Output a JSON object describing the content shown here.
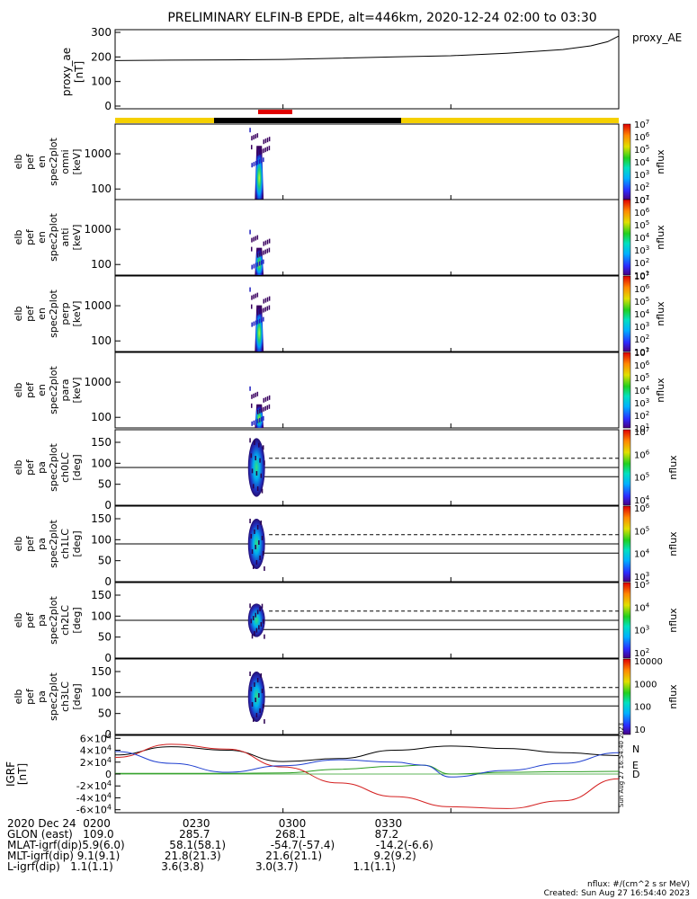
{
  "title": "PRELIMINARY ELFIN-B EPDE, alt=446km, 2020-12-24 02:00 to 03:30",
  "colors": {
    "sci_zone_yellow": "#f5d000",
    "sci_zone_black": "#000000",
    "sci_zone_red": "#e00000",
    "field_N": "#000000",
    "field_E": "#2a9d20",
    "field_D": "#d42020",
    "field_blue": "#2040d0"
  },
  "labels": {
    "proxy_ae_legend": "proxy_AE",
    "igrf_N": "N",
    "igrf_E": "E",
    "igrf_D": "D",
    "stamp": "Sun Aug 27 16:54:40 2023"
  },
  "footer": {
    "row1": "2020 Dec 24  0200                     0230                    0300                    0330",
    "row2": "GLON (east)   109.0                   285.7                   268.1                    87.2",
    "row3": "MLAT-igrf(dip)5.9(6.0)             58.1(58.1)             -54.7(-57.4)            -14.2(-6.6)",
    "row4": "MLT-igrf(dip) 9.1(9.1)             21.8(21.3)             21.6(21.1)               9.2(9.2)",
    "row5": "L-igrf(dip)   1.1(1.1)              3.6(3.8)               3.0(3.7)                1.1(1.1)",
    "units": "nflux: #/(cm^2 s sr MeV)",
    "created": "Created: Sun Aug 27 16:54:40 2023"
  },
  "chart_data": [
    {
      "type": "line",
      "title": "PRELIMINARY ELFIN-B EPDE, alt=446km, 2020-12-24 02:00 to 03:30",
      "ylabel": "proxy_ae [nT]",
      "ylim": [
        0,
        300
      ],
      "yticks": [
        "0",
        "100",
        "200",
        "300"
      ],
      "series": [
        {
          "name": "proxy_AE",
          "x_min": [
            0,
            10,
            20,
            30,
            40,
            50,
            60,
            70,
            80,
            85,
            88,
            90
          ],
          "y": [
            185,
            187,
            188,
            190,
            195,
            200,
            205,
            215,
            230,
            245,
            262,
            285
          ]
        }
      ]
    },
    {
      "type": "heatmap",
      "ylabel": "elb pef en spec2plot omni [keV]",
      "yscale": "log",
      "yticks": [
        "100",
        "1000"
      ],
      "colorbar": {
        "label": "nflux",
        "ticks": [
          "10^1",
          "10^2",
          "10^3",
          "10^4",
          "10^5",
          "10^6",
          "10^7"
        ]
      },
      "time_range_min": [
        24,
        27.5
      ]
    },
    {
      "type": "heatmap",
      "ylabel": "elb pef en spec2plot anti [keV]",
      "yscale": "log",
      "yticks": [
        "100",
        "1000"
      ],
      "colorbar": {
        "label": "nflux",
        "ticks": [
          "10^1",
          "10^2",
          "10^3",
          "10^4",
          "10^5",
          "10^6",
          "10^7"
        ]
      },
      "time_range_min": [
        24,
        27.5
      ]
    },
    {
      "type": "heatmap",
      "ylabel": "elb pef en spec2plot perp [keV]",
      "yscale": "log",
      "yticks": [
        "100",
        "1000"
      ],
      "colorbar": {
        "label": "nflux",
        "ticks": [
          "10^1",
          "10^2",
          "10^3",
          "10^4",
          "10^5",
          "10^6",
          "10^7"
        ]
      },
      "time_range_min": [
        24,
        27.5
      ]
    },
    {
      "type": "heatmap",
      "ylabel": "elb pef en spec2plot para [keV]",
      "yscale": "log",
      "yticks": [
        "100",
        "1000"
      ],
      "colorbar": {
        "label": "nflux",
        "ticks": [
          "10^1",
          "10^2",
          "10^3",
          "10^4",
          "10^5",
          "10^6",
          "10^7"
        ]
      },
      "time_range_min": [
        24,
        27.5
      ]
    },
    {
      "type": "heatmap",
      "ylabel": "elb pef pa spec2plot ch0LC [deg]",
      "ylim": [
        0,
        180
      ],
      "yticks": [
        "0",
        "50",
        "100",
        "150"
      ],
      "reference_lines_deg": [
        90,
        68,
        112
      ],
      "colorbar": {
        "label": "nflux",
        "ticks": [
          "10^4",
          "10^5",
          "10^6",
          "10^7"
        ]
      },
      "time_range_min": [
        24,
        27.5
      ]
    },
    {
      "type": "heatmap",
      "ylabel": "elb pef pa spec2plot ch1LC [deg]",
      "ylim": [
        0,
        180
      ],
      "yticks": [
        "0",
        "50",
        "100",
        "150"
      ],
      "reference_lines_deg": [
        90,
        68,
        112
      ],
      "colorbar": {
        "label": "nflux",
        "ticks": [
          "10^3",
          "10^4",
          "10^5",
          "10^6"
        ]
      },
      "time_range_min": [
        24,
        27.5
      ]
    },
    {
      "type": "heatmap",
      "ylabel": "elb pef pa spec2plot ch2LC [deg]",
      "ylim": [
        0,
        180
      ],
      "yticks": [
        "0",
        "50",
        "100",
        "150"
      ],
      "reference_lines_deg": [
        90,
        68,
        112
      ],
      "colorbar": {
        "label": "nflux",
        "ticks": [
          "10^2",
          "10^3",
          "10^4",
          "10^5"
        ]
      },
      "time_range_min": [
        24,
        27.5
      ]
    },
    {
      "type": "heatmap",
      "ylabel": "elb pef pa spec2plot ch3LC [deg]",
      "ylim": [
        0,
        180
      ],
      "yticks": [
        "0",
        "50",
        "100",
        "150"
      ],
      "reference_lines_deg": [
        90,
        68,
        112
      ],
      "colorbar": {
        "label": "nflux",
        "ticks": [
          "10",
          "100",
          "1000",
          "10000"
        ]
      },
      "time_range_min": [
        24,
        27.5
      ]
    },
    {
      "type": "line",
      "ylabel": "IGRF [nT]",
      "ylim": [
        -65000,
        65000
      ],
      "yticks": [
        "-6x10^4",
        "-4x10^4",
        "-2x10^4",
        "0",
        "2x10^4",
        "4x10^4",
        "6x10^4"
      ],
      "series": [
        {
          "name": "N",
          "x_min": [
            0,
            10,
            20,
            30,
            40,
            50,
            60,
            70,
            80,
            90
          ],
          "y": [
            32000,
            46000,
            40000,
            21000,
            26000,
            40000,
            47000,
            43000,
            36000,
            31000
          ]
        },
        {
          "name": "E",
          "x_min": [
            0,
            10,
            20,
            30,
            40,
            50,
            55,
            60,
            70,
            80,
            90
          ],
          "y": [
            1000,
            1000,
            1000,
            2000,
            8000,
            13000,
            15000,
            0,
            3000,
            4000,
            4500
          ]
        },
        {
          "name": "D",
          "x_min": [
            0,
            10,
            20,
            30,
            40,
            50,
            60,
            70,
            80,
            90
          ],
          "y": [
            28000,
            50000,
            42000,
            12000,
            -15000,
            -38000,
            -55000,
            -58000,
            -45000,
            -8000
          ]
        },
        {
          "name": "",
          "x_min": [
            0,
            10,
            20,
            30,
            40,
            50,
            55,
            60,
            70,
            80,
            90
          ],
          "y": [
            38000,
            18000,
            3000,
            14000,
            24000,
            20000,
            15000,
            -5000,
            6000,
            18000,
            36000
          ]
        }
      ]
    }
  ]
}
